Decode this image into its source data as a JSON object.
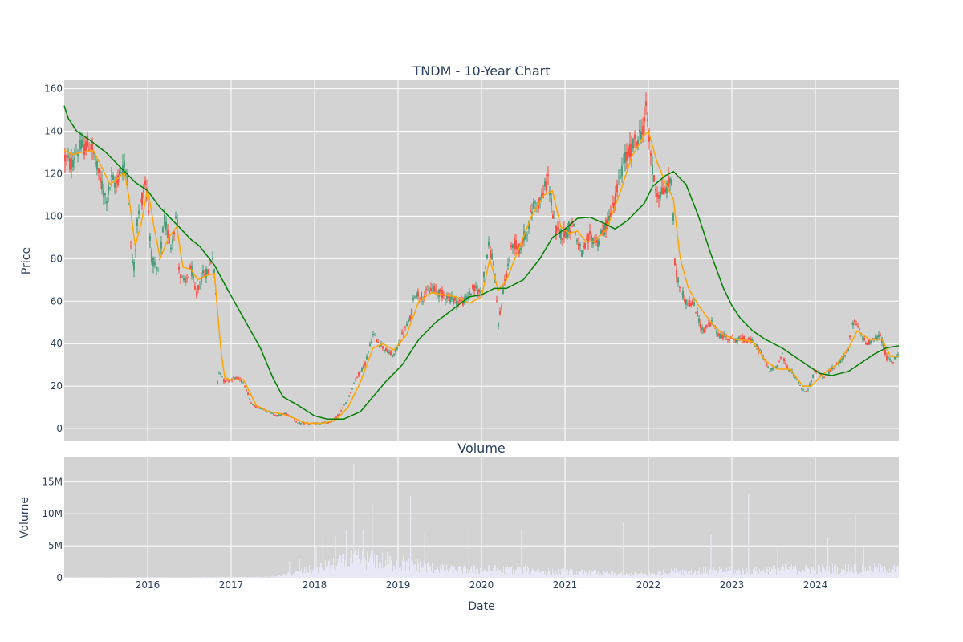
{
  "chart_data": [
    {
      "type": "candlestick",
      "title": "TNDM - 10-Year Chart",
      "ylabel": "Price",
      "ylim": [
        -6,
        164
      ],
      "yticks": [
        0,
        20,
        40,
        60,
        80,
        100,
        120,
        140,
        160
      ],
      "x_range": [
        2015.0,
        2025.0
      ],
      "grid": true,
      "legend": "none",
      "colors": {
        "up": "#3D9970",
        "down": "#FF4136",
        "ma_short": "#FFA500",
        "ma_long": "#008000",
        "plot_bg": "#D3D3D3"
      },
      "price_path": [
        [
          2015.0,
          128
        ],
        [
          2015.08,
          124
        ],
        [
          2015.15,
          131
        ],
        [
          2015.25,
          133
        ],
        [
          2015.32,
          134
        ],
        [
          2015.4,
          121
        ],
        [
          2015.5,
          108
        ],
        [
          2015.57,
          117
        ],
        [
          2015.62,
          115
        ],
        [
          2015.7,
          124
        ],
        [
          2015.77,
          120
        ],
        [
          2015.8,
          82
        ],
        [
          2015.84,
          76
        ],
        [
          2015.88,
          100
        ],
        [
          2015.94,
          110
        ],
        [
          2015.98,
          118
        ],
        [
          2016.05,
          80
        ],
        [
          2016.12,
          72
        ],
        [
          2016.2,
          98
        ],
        [
          2016.28,
          86
        ],
        [
          2016.35,
          102
        ],
        [
          2016.38,
          72
        ],
        [
          2016.45,
          68
        ],
        [
          2016.52,
          76
        ],
        [
          2016.58,
          62
        ],
        [
          2016.65,
          72
        ],
        [
          2016.72,
          74
        ],
        [
          2016.78,
          82
        ],
        [
          2016.82,
          62
        ],
        [
          2016.83,
          20
        ],
        [
          2016.86,
          28
        ],
        [
          2016.92,
          22
        ],
        [
          2017.05,
          24
        ],
        [
          2017.15,
          22
        ],
        [
          2017.25,
          11
        ],
        [
          2017.4,
          9
        ],
        [
          2017.55,
          6
        ],
        [
          2017.65,
          7
        ],
        [
          2017.75,
          5
        ],
        [
          2017.8,
          2.5
        ],
        [
          2018.0,
          2.3
        ],
        [
          2018.2,
          3
        ],
        [
          2018.3,
          7
        ],
        [
          2018.4,
          14
        ],
        [
          2018.5,
          24
        ],
        [
          2018.6,
          30
        ],
        [
          2018.7,
          44
        ],
        [
          2018.78,
          40
        ],
        [
          2018.85,
          37
        ],
        [
          2018.95,
          34
        ],
        [
          2019.05,
          44
        ],
        [
          2019.15,
          52
        ],
        [
          2019.2,
          64
        ],
        [
          2019.3,
          62
        ],
        [
          2019.4,
          66
        ],
        [
          2019.5,
          64
        ],
        [
          2019.6,
          62
        ],
        [
          2019.7,
          60
        ],
        [
          2019.8,
          60
        ],
        [
          2019.9,
          66
        ],
        [
          2020.0,
          64
        ],
        [
          2020.08,
          86
        ],
        [
          2020.15,
          78
        ],
        [
          2020.2,
          48
        ],
        [
          2020.28,
          70
        ],
        [
          2020.38,
          88
        ],
        [
          2020.45,
          84
        ],
        [
          2020.55,
          94
        ],
        [
          2020.62,
          105
        ],
        [
          2020.72,
          108
        ],
        [
          2020.8,
          118
        ],
        [
          2020.85,
          102
        ],
        [
          2020.9,
          92
        ],
        [
          2021.0,
          92
        ],
        [
          2021.1,
          97
        ],
        [
          2021.15,
          88
        ],
        [
          2021.2,
          82
        ],
        [
          2021.3,
          90
        ],
        [
          2021.4,
          88
        ],
        [
          2021.5,
          96
        ],
        [
          2021.6,
          108
        ],
        [
          2021.7,
          125
        ],
        [
          2021.8,
          132
        ],
        [
          2021.9,
          138
        ],
        [
          2021.98,
          150
        ],
        [
          2022.05,
          120
        ],
        [
          2022.12,
          110
        ],
        [
          2022.2,
          112
        ],
        [
          2022.28,
          118
        ],
        [
          2022.32,
          75
        ],
        [
          2022.38,
          66
        ],
        [
          2022.45,
          60
        ],
        [
          2022.55,
          58
        ],
        [
          2022.65,
          46
        ],
        [
          2022.75,
          50
        ],
        [
          2022.85,
          44
        ],
        [
          2022.95,
          43
        ],
        [
          2023.05,
          42
        ],
        [
          2023.15,
          42
        ],
        [
          2023.25,
          41
        ],
        [
          2023.35,
          36
        ],
        [
          2023.45,
          27
        ],
        [
          2023.55,
          30
        ],
        [
          2023.6,
          35
        ],
        [
          2023.65,
          30
        ],
        [
          2023.75,
          25
        ],
        [
          2023.85,
          18
        ],
        [
          2023.9,
          17
        ],
        [
          2024.0,
          28
        ],
        [
          2024.1,
          24
        ],
        [
          2024.2,
          28
        ],
        [
          2024.3,
          32
        ],
        [
          2024.4,
          38
        ],
        [
          2024.43,
          48
        ],
        [
          2024.48,
          50
        ],
        [
          2024.55,
          44
        ],
        [
          2024.62,
          40
        ],
        [
          2024.7,
          42
        ],
        [
          2024.78,
          44
        ],
        [
          2024.85,
          34
        ],
        [
          2024.92,
          31
        ],
        [
          2025.0,
          36
        ]
      ],
      "ma_short": [
        [
          2015.0,
          131
        ],
        [
          2015.1,
          129
        ],
        [
          2015.2,
          130
        ],
        [
          2015.35,
          131
        ],
        [
          2015.45,
          123
        ],
        [
          2015.55,
          115
        ],
        [
          2015.65,
          118
        ],
        [
          2015.72,
          121
        ],
        [
          2015.78,
          108
        ],
        [
          2015.85,
          86
        ],
        [
          2015.92,
          96
        ],
        [
          2016.0,
          113
        ],
        [
          2016.08,
          94
        ],
        [
          2016.15,
          80
        ],
        [
          2016.25,
          90
        ],
        [
          2016.35,
          95
        ],
        [
          2016.42,
          76
        ],
        [
          2016.52,
          75
        ],
        [
          2016.6,
          70
        ],
        [
          2016.7,
          72
        ],
        [
          2016.8,
          73
        ],
        [
          2016.87,
          40
        ],
        [
          2016.92,
          24
        ],
        [
          2017.0,
          23
        ],
        [
          2017.15,
          23
        ],
        [
          2017.3,
          11
        ],
        [
          2017.45,
          8
        ],
        [
          2017.6,
          7
        ],
        [
          2017.75,
          5
        ],
        [
          2017.9,
          2.5
        ],
        [
          2018.1,
          2.5
        ],
        [
          2018.25,
          4
        ],
        [
          2018.4,
          10
        ],
        [
          2018.55,
          22
        ],
        [
          2018.7,
          38
        ],
        [
          2018.82,
          40
        ],
        [
          2018.95,
          37
        ],
        [
          2019.1,
          44
        ],
        [
          2019.25,
          60
        ],
        [
          2019.4,
          64
        ],
        [
          2019.55,
          63
        ],
        [
          2019.7,
          62
        ],
        [
          2019.85,
          59
        ],
        [
          2020.0,
          62
        ],
        [
          2020.1,
          80
        ],
        [
          2020.2,
          65
        ],
        [
          2020.3,
          70
        ],
        [
          2020.45,
          85
        ],
        [
          2020.6,
          100
        ],
        [
          2020.75,
          110
        ],
        [
          2020.85,
          112
        ],
        [
          2020.95,
          95
        ],
        [
          2021.05,
          92
        ],
        [
          2021.15,
          93
        ],
        [
          2021.25,
          88
        ],
        [
          2021.35,
          88
        ],
        [
          2021.5,
          94
        ],
        [
          2021.65,
          110
        ],
        [
          2021.8,
          128
        ],
        [
          2021.95,
          138
        ],
        [
          2022.0,
          140
        ],
        [
          2022.1,
          126
        ],
        [
          2022.2,
          116
        ],
        [
          2022.3,
          108
        ],
        [
          2022.38,
          80
        ],
        [
          2022.48,
          66
        ],
        [
          2022.6,
          58
        ],
        [
          2022.75,
          50
        ],
        [
          2022.9,
          44
        ],
        [
          2023.05,
          42
        ],
        [
          2023.25,
          41
        ],
        [
          2023.4,
          32
        ],
        [
          2023.55,
          28
        ],
        [
          2023.7,
          28
        ],
        [
          2023.85,
          20
        ],
        [
          2023.95,
          20
        ],
        [
          2024.1,
          26
        ],
        [
          2024.25,
          30
        ],
        [
          2024.4,
          38
        ],
        [
          2024.5,
          46
        ],
        [
          2024.65,
          42
        ],
        [
          2024.8,
          42
        ],
        [
          2024.9,
          34
        ],
        [
          2025.0,
          34
        ]
      ],
      "ma_long": [
        [
          2015.0,
          152
        ],
        [
          2015.05,
          146
        ],
        [
          2015.15,
          140
        ],
        [
          2015.3,
          136
        ],
        [
          2015.5,
          130
        ],
        [
          2015.7,
          122
        ],
        [
          2015.85,
          116
        ],
        [
          2016.0,
          112
        ],
        [
          2016.15,
          104
        ],
        [
          2016.35,
          96
        ],
        [
          2016.52,
          89
        ],
        [
          2016.62,
          86
        ],
        [
          2016.8,
          77
        ],
        [
          2016.95,
          66
        ],
        [
          2017.15,
          52
        ],
        [
          2017.35,
          38
        ],
        [
          2017.5,
          24
        ],
        [
          2017.62,
          15
        ],
        [
          2017.8,
          11
        ],
        [
          2018.0,
          6
        ],
        [
          2018.15,
          4.5
        ],
        [
          2018.35,
          4.5
        ],
        [
          2018.55,
          8
        ],
        [
          2018.7,
          15
        ],
        [
          2018.85,
          22
        ],
        [
          2019.05,
          30
        ],
        [
          2019.25,
          42
        ],
        [
          2019.45,
          50
        ],
        [
          2019.65,
          56
        ],
        [
          2019.85,
          62
        ],
        [
          2020.0,
          63
        ],
        [
          2020.15,
          66
        ],
        [
          2020.3,
          66
        ],
        [
          2020.5,
          70
        ],
        [
          2020.7,
          80
        ],
        [
          2020.85,
          90
        ],
        [
          2021.0,
          94
        ],
        [
          2021.15,
          99
        ],
        [
          2021.3,
          99.5
        ],
        [
          2021.45,
          97
        ],
        [
          2021.6,
          94
        ],
        [
          2021.75,
          98
        ],
        [
          2021.95,
          106
        ],
        [
          2022.05,
          114
        ],
        [
          2022.2,
          119
        ],
        [
          2022.3,
          121
        ],
        [
          2022.45,
          115
        ],
        [
          2022.6,
          100
        ],
        [
          2022.75,
          82
        ],
        [
          2022.9,
          66
        ],
        [
          2023.0,
          58
        ],
        [
          2023.1,
          52
        ],
        [
          2023.25,
          46
        ],
        [
          2023.4,
          42
        ],
        [
          2023.6,
          38
        ],
        [
          2023.75,
          34
        ],
        [
          2023.9,
          30
        ],
        [
          2024.05,
          26
        ],
        [
          2024.2,
          25
        ],
        [
          2024.4,
          27
        ],
        [
          2024.55,
          31
        ],
        [
          2024.7,
          35
        ],
        [
          2024.85,
          38
        ],
        [
          2025.0,
          39
        ]
      ]
    },
    {
      "type": "bar",
      "title": "Volume",
      "xlabel": "Date",
      "ylabel": "Volume",
      "ylim": [
        0,
        18800000
      ],
      "yticks": [
        0,
        5000000,
        10000000,
        15000000
      ],
      "ytick_labels": [
        "0",
        "5M",
        "10M",
        "15M"
      ],
      "xticks": [
        2016,
        2017,
        2018,
        2019,
        2020,
        2021,
        2022,
        2023,
        2024
      ],
      "xtick_labels": [
        "2016",
        "2017",
        "2018",
        "2019",
        "2020",
        "2021",
        "2022",
        "2023",
        "2024"
      ],
      "grid": true,
      "bar_color": "#E8E8F6",
      "volume_base": [
        [
          2015.0,
          80000
        ],
        [
          2016.5,
          80000
        ],
        [
          2017.5,
          150000
        ],
        [
          2017.8,
          900000
        ],
        [
          2018.3,
          2500000
        ],
        [
          2018.5,
          3200000
        ],
        [
          2018.8,
          3000000
        ],
        [
          2019.2,
          2200000
        ],
        [
          2019.6,
          1400000
        ],
        [
          2020.0,
          1400000
        ],
        [
          2020.4,
          1500000
        ],
        [
          2020.8,
          1100000
        ],
        [
          2021.3,
          900000
        ],
        [
          2021.7,
          600000
        ],
        [
          2022.0,
          700000
        ],
        [
          2022.4,
          1200000
        ],
        [
          2022.8,
          1200000
        ],
        [
          2023.2,
          1200000
        ],
        [
          2023.6,
          1500000
        ],
        [
          2024.0,
          1500000
        ],
        [
          2024.4,
          1600000
        ],
        [
          2025.0,
          1500000
        ]
      ],
      "volume_spikes": [
        [
          2017.7,
          2600000
        ],
        [
          2017.82,
          3000000
        ],
        [
          2018.02,
          5000000
        ],
        [
          2018.1,
          6200000
        ],
        [
          2018.25,
          6500000
        ],
        [
          2018.38,
          7300000
        ],
        [
          2018.47,
          17800000
        ],
        [
          2018.58,
          7400000
        ],
        [
          2018.69,
          11500000
        ],
        [
          2019.15,
          12800000
        ],
        [
          2019.32,
          6800000
        ],
        [
          2019.85,
          7200000
        ],
        [
          2020.48,
          7400000
        ],
        [
          2021.7,
          8700000
        ],
        [
          2022.75,
          6800000
        ],
        [
          2023.2,
          13200000
        ],
        [
          2023.55,
          4500000
        ],
        [
          2024.15,
          6300000
        ],
        [
          2024.48,
          9800000
        ],
        [
          2024.58,
          4700000
        ]
      ]
    }
  ]
}
